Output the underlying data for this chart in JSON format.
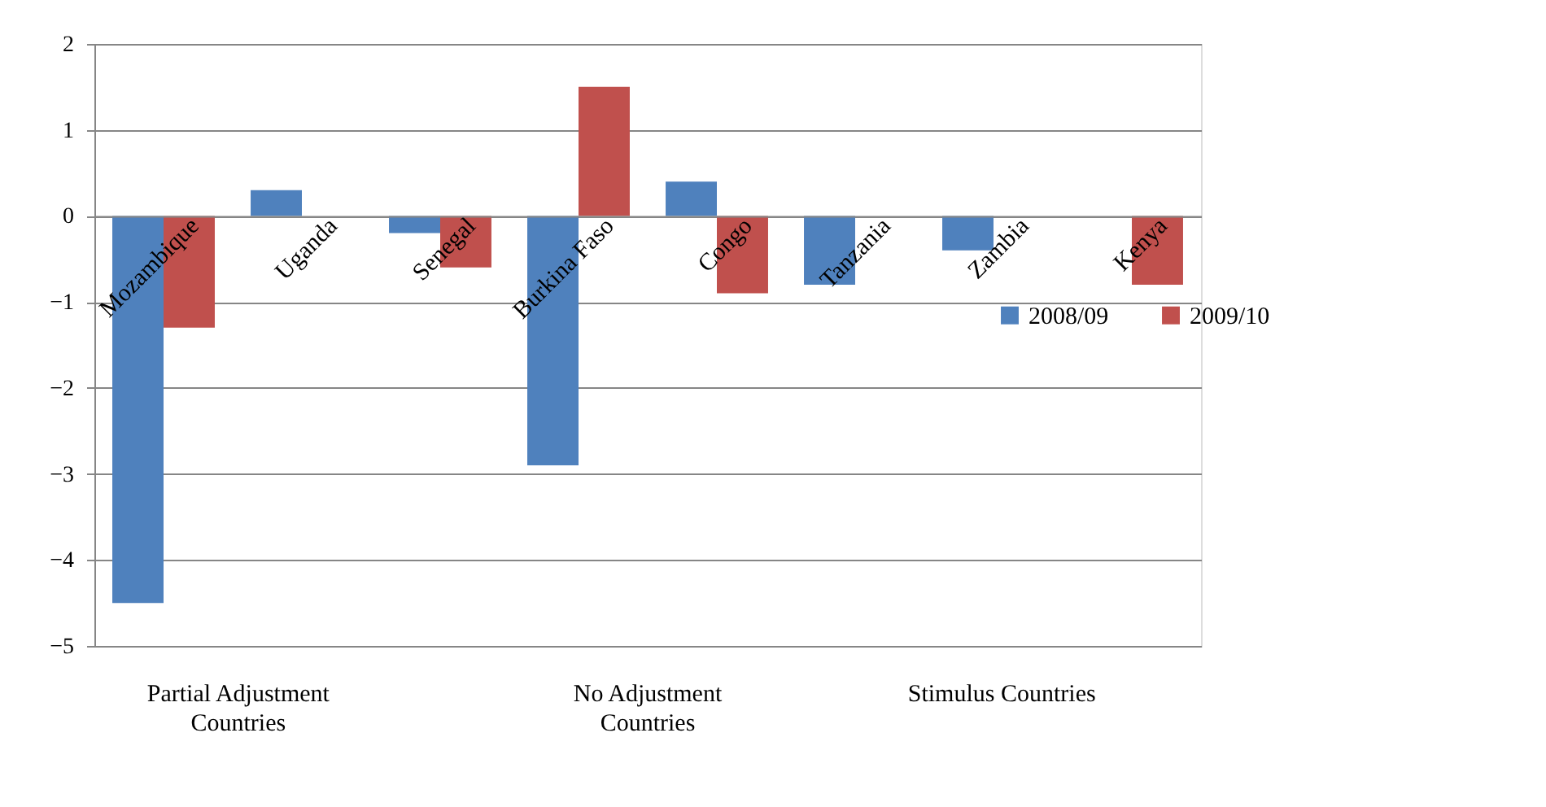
{
  "chart_data": {
    "type": "bar",
    "categories": [
      "Mozambique",
      "Uganda",
      "Senegal",
      "Burkina Faso",
      "Congo",
      "Tanzania",
      "Zambia",
      "Kenya"
    ],
    "series": [
      {
        "name": "2008/09",
        "color": "#4f81bd",
        "values": [
          -4.5,
          0.3,
          -0.2,
          -2.9,
          0.4,
          -0.8,
          -0.4,
          null
        ]
      },
      {
        "name": "2009/10",
        "color": "#c0504d",
        "values": [
          -1.3,
          null,
          -0.6,
          1.5,
          -0.9,
          null,
          null,
          -0.8
        ]
      }
    ],
    "ylim": [
      -5,
      2
    ],
    "yticks": [
      -5,
      -4,
      -3,
      -2,
      -1,
      0,
      1,
      2
    ],
    "grid": "y",
    "legend": "right",
    "annotations": [
      "Partial Adjustment\nCountries",
      "No Adjustment\nCountries",
      "Stimulus Countries"
    ]
  }
}
